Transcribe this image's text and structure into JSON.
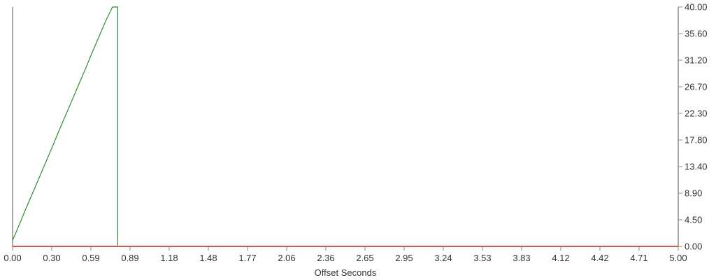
{
  "chart_data": {
    "type": "line",
    "title": "",
    "xlabel": "Offset Seconds",
    "ylabel": "",
    "xlim": [
      0,
      5
    ],
    "ylim": [
      0,
      40
    ],
    "x_ticks": [
      "0.00",
      "0.30",
      "0.59",
      "0.89",
      "1.18",
      "1.48",
      "1.77",
      "2.06",
      "2.36",
      "2.65",
      "2.95",
      "3.24",
      "3.53",
      "3.83",
      "4.12",
      "4.42",
      "4.71",
      "5.00"
    ],
    "y_ticks": [
      "0.00",
      "4.50",
      "8.90",
      "13.40",
      "17.80",
      "22.30",
      "26.70",
      "31.20",
      "35.60",
      "40.00"
    ],
    "y_axis_side": "right",
    "grid": false,
    "series": [
      {
        "color": "#2e8b2e",
        "x": [
          0,
          0.05,
          0.1,
          0.15,
          0.2,
          0.25,
          0.3,
          0.35,
          0.4,
          0.45,
          0.5,
          0.55,
          0.6,
          0.65,
          0.7,
          0.75,
          0.79,
          0.79
        ],
        "y": [
          1,
          3.6,
          6.3,
          8.9,
          11.5,
          14.1,
          16.7,
          19.4,
          22.0,
          24.6,
          27.2,
          29.8,
          32.5,
          35.1,
          37.7,
          40.0,
          40.0,
          0
        ]
      },
      {
        "color": "#d9534f",
        "x": [
          0,
          5
        ],
        "y": [
          0,
          0
        ]
      }
    ]
  }
}
